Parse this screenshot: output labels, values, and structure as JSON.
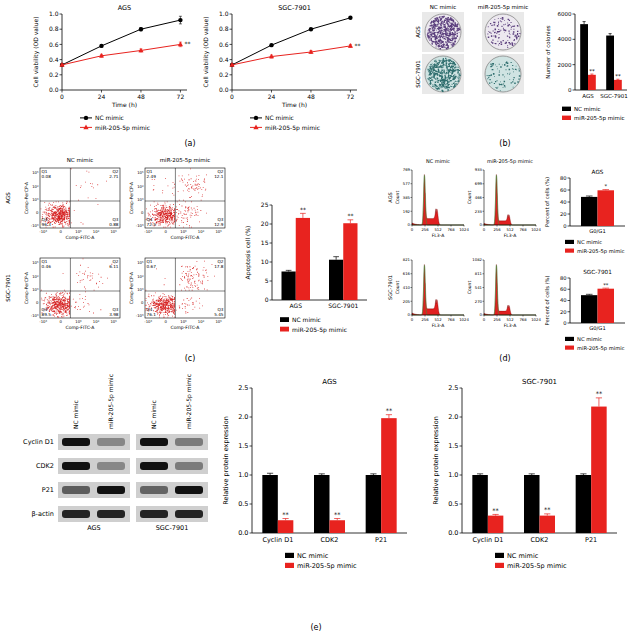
{
  "figure": {
    "panel_labels": [
      "(a)",
      "(b)",
      "(c)",
      "(d)",
      "(e)"
    ],
    "colonies": {
      "columns": [
        "NC mimic",
        "miR-205-5p mimic"
      ],
      "rows": [
        "AGS",
        "SGC-7901"
      ]
    },
    "flow": {
      "columns": [
        "NC mimic",
        "miR-205-5p mimic"
      ],
      "rows": [
        "AGS",
        "SGC-7901"
      ],
      "x_label": "Comp-FITC-A",
      "y_label": "Comp-PerCP-A",
      "x_tick_labels": [
        "-10³",
        "0",
        "10³",
        "10⁴",
        "10⁵"
      ],
      "y_tick_labels": [
        "-10³",
        "0",
        "10³",
        "10⁴",
        "10⁵"
      ],
      "quadrants": [
        "Q1",
        "Q2",
        "Q3",
        "Q4"
      ],
      "plots": [
        [
          [
            0.08,
            2.71,
            0.88,
            96.3
          ],
          [
            2.49,
            12.1,
            12.9,
            72.5
          ]
        ],
        [
          [
            0.46,
            6.11,
            3.98,
            89.5
          ],
          [
            0.67,
            17.8,
            5.45,
            76.1
          ]
        ]
      ]
    },
    "cell_cycle": {
      "columns": [
        "NC mimic",
        "miR-205-5p mimic"
      ],
      "rows": [
        "AGS",
        "SGC-7901"
      ],
      "x_label": "FL3-A",
      "y_label": "Count",
      "xlim": [
        0,
        1024
      ],
      "xticks": [
        0,
        256,
        512,
        768,
        1024
      ],
      "plots": [
        [
          {
            "ylim": [
              0,
              769
            ],
            "yticks": [
              0,
              192,
              385,
              577,
              769
            ]
          },
          {
            "ylim": [
              0,
              933
            ],
            "yticks": [
              0,
              233,
              466,
              699,
              933
            ]
          }
        ],
        [
          {
            "ylim": [
              0,
              821
            ],
            "yticks": [
              0,
              205,
              410,
              616,
              821
            ]
          },
          {
            "ylim": [
              0,
              1082
            ],
            "yticks": [
              0,
              270,
              541,
              811,
              1082
            ]
          }
        ]
      ]
    },
    "western_blot": {
      "proteins": [
        "Cyclin D1",
        "CDK2",
        "P21",
        "β-actin"
      ],
      "cells": [
        "AGS",
        "SGC-7901"
      ],
      "lanes": [
        "NC mimic",
        "miR-205-5p mimic"
      ]
    }
  },
  "chart_data": [
    {
      "type": "line",
      "title": "AGS",
      "x_label": "Time (h)",
      "y_label": "Cell viability (OD value)",
      "x": [
        0,
        24,
        48,
        72
      ],
      "xlim": [
        0,
        76
      ],
      "xticks": [
        0,
        24,
        48,
        72
      ],
      "ylim": [
        0,
        1
      ],
      "yticks": [
        {
          "value": 0,
          "label": "0.0"
        },
        0.2,
        0.4,
        0.6,
        0.8,
        {
          "value": 1,
          "label": "1.0"
        }
      ],
      "legend": "bottom",
      "series": [
        {
          "name": "NC mimic",
          "color": "#000000",
          "marker": "circle",
          "values": [
            0.33,
            0.58,
            0.8,
            0.92
          ],
          "errors": [
            0.01,
            0.01,
            0.02,
            0.05
          ]
        },
        {
          "name": "miR-205-5p mimic",
          "color": "#e8231f",
          "marker": "triangle",
          "values": [
            0.33,
            0.45,
            0.52,
            0.6
          ],
          "errors": [
            0.01,
            0.02,
            0.02,
            0.03
          ],
          "significance": [
            null,
            null,
            null,
            "**"
          ]
        }
      ]
    },
    {
      "type": "line",
      "title": "SGC-7901",
      "x_label": "Time (h)",
      "y_label": "Cell viability (OD value)",
      "x": [
        0,
        24,
        48,
        72
      ],
      "xlim": [
        0,
        76
      ],
      "xticks": [
        0,
        24,
        48,
        72
      ],
      "ylim": [
        0,
        1
      ],
      "yticks": [
        {
          "value": 0,
          "label": "0.0"
        },
        0.2,
        0.4,
        0.6,
        0.8,
        {
          "value": 1,
          "label": "1.0"
        }
      ],
      "legend": "bottom",
      "series": [
        {
          "name": "NC mimic",
          "color": "#000000",
          "marker": "circle",
          "values": [
            0.33,
            0.59,
            0.8,
            0.95
          ],
          "errors": [
            0.01,
            0.01,
            0.01,
            0.01
          ]
        },
        {
          "name": "miR-205-5p mimic",
          "color": "#e8231f",
          "marker": "triangle",
          "values": [
            0.33,
            0.44,
            0.5,
            0.58
          ],
          "errors": [
            0.01,
            0.02,
            0.02,
            0.02
          ],
          "significance": [
            null,
            null,
            null,
            "**"
          ]
        }
      ]
    },
    {
      "type": "bar",
      "y_label": "Number of colonies",
      "categories": [
        "AGS",
        "SGC-7901"
      ],
      "ylim": [
        0,
        6000
      ],
      "yticks": [
        0,
        2000,
        4000,
        6000
      ],
      "legend": "bottom",
      "series": [
        {
          "name": "NC mimic",
          "color": "#000000",
          "values": [
            5200,
            4300
          ],
          "errors": [
            200,
            150
          ]
        },
        {
          "name": "miR-205-5p mimic",
          "color": "#e8231f",
          "values": [
            1200,
            800
          ],
          "errors": [
            60,
            50
          ],
          "significance": [
            "**",
            "**"
          ]
        }
      ]
    },
    {
      "type": "bar",
      "y_label": "Apoptosis cell (%)",
      "categories": [
        "AGS",
        "SGC-7901"
      ],
      "ylim": [
        0,
        25
      ],
      "yticks": [
        0,
        5,
        10,
        15,
        20,
        25
      ],
      "legend": "bottom",
      "series": [
        {
          "name": "NC mimic",
          "color": "#000000",
          "values": [
            7.5,
            10.6
          ],
          "errors": [
            0.3,
            0.8
          ]
        },
        {
          "name": "miR-205-5p mimic",
          "color": "#e8231f",
          "values": [
            21.6,
            20.2
          ],
          "errors": [
            1.2,
            0.9
          ],
          "significance": [
            "**",
            "**"
          ]
        }
      ]
    },
    {
      "type": "bar",
      "title": "AGS",
      "y_label": "Percent of cells (%)",
      "categories": [
        "G0/G1"
      ],
      "ylim": [
        0,
        80
      ],
      "yticks": [
        0,
        20,
        40,
        60,
        80
      ],
      "legend": "bottom",
      "series": [
        {
          "name": "NC mimic",
          "color": "#000000",
          "values": [
            48.5
          ],
          "errors": [
            1.5
          ]
        },
        {
          "name": "miR-205-5p mimic",
          "color": "#e8231f",
          "values": [
            59.5
          ],
          "errors": [
            1.2
          ],
          "significance": [
            "*"
          ]
        }
      ]
    },
    {
      "type": "bar",
      "title": "SGC-7901",
      "y_label": "Percent of cells (%)",
      "categories": [
        "G0/G1"
      ],
      "ylim": [
        0,
        80
      ],
      "yticks": [
        0,
        20,
        40,
        60,
        80
      ],
      "legend": "bottom",
      "series": [
        {
          "name": "NC mimic",
          "color": "#000000",
          "values": [
            49.5
          ],
          "errors": [
            1.5
          ]
        },
        {
          "name": "miR-205-5p mimic",
          "color": "#e8231f",
          "values": [
            61
          ],
          "errors": [
            1
          ],
          "significance": [
            "**"
          ]
        }
      ]
    },
    {
      "type": "bar",
      "title": "AGS",
      "y_label": "Relative protein expression",
      "categories": [
        "Cyclin D1",
        "CDK2",
        "P21"
      ],
      "ylim": [
        0,
        2.5
      ],
      "yticks": [
        {
          "value": 0,
          "label": "0.0"
        },
        0.5,
        {
          "value": 1,
          "label": "1.0"
        },
        1.5,
        {
          "value": 2,
          "label": "2.0"
        },
        2.5
      ],
      "legend": "bottom",
      "series": [
        {
          "name": "NC mimic",
          "color": "#000000",
          "values": [
            1,
            1,
            1
          ],
          "errors": [
            0.03,
            0.02,
            0.02
          ]
        },
        {
          "name": "miR-205-5p mimic",
          "color": "#e8231f",
          "values": [
            0.22,
            0.22,
            1.98
          ],
          "errors": [
            0.03,
            0.03,
            0.06
          ],
          "significance": [
            "**",
            "**",
            "**"
          ]
        }
      ]
    },
    {
      "type": "bar",
      "title": "SGC-7901",
      "y_label": "Relative protein expression",
      "categories": [
        "Cyclin D1",
        "CDK2",
        "P21"
      ],
      "ylim": [
        0,
        2.5
      ],
      "yticks": [
        {
          "value": 0,
          "label": "0.0"
        },
        0.5,
        {
          "value": 1,
          "label": "1.0"
        },
        1.5,
        {
          "value": 2,
          "label": "2.0"
        },
        2.5
      ],
      "legend": "bottom",
      "series": [
        {
          "name": "NC mimic",
          "color": "#000000",
          "values": [
            1,
            1,
            1
          ],
          "errors": [
            0.02,
            0.02,
            0.02
          ]
        },
        {
          "name": "miR-205-5p mimic",
          "color": "#e8231f",
          "values": [
            0.3,
            0.3,
            2.18
          ],
          "errors": [
            0.02,
            0.03,
            0.15
          ],
          "significance": [
            "**",
            "**",
            "**"
          ]
        }
      ]
    }
  ]
}
